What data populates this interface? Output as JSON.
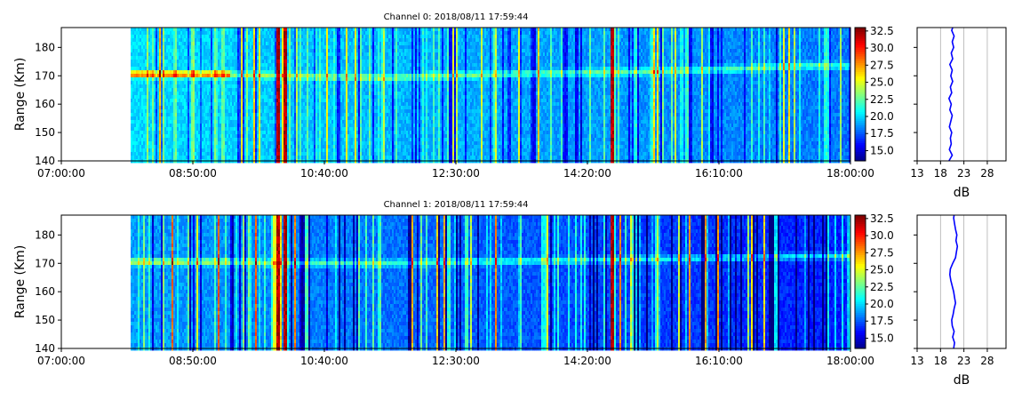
{
  "chart_data": [
    {
      "type": "heatmap",
      "title": "Channel 0: 2018/08/11 17:59:44",
      "ylabel": "Range (Km)",
      "xlim": [
        "07:00:00",
        "18:00:00"
      ],
      "data_start": "07:58:00",
      "ylim": [
        140,
        187
      ],
      "x_ticks": [
        "07:00:00",
        "08:50:00",
        "10:40:00",
        "12:30:00",
        "14:20:00",
        "16:10:00",
        "18:00:00"
      ],
      "y_ticks": [
        140,
        150,
        160,
        170,
        180
      ],
      "echo_layer": [
        {
          "time": "07:58:00",
          "range": 170.5
        },
        {
          "time": "09:10:00",
          "range": 170.5
        },
        {
          "time": "10:20:00",
          "range": 169.8
        },
        {
          "time": "11:30:00",
          "range": 169.2
        },
        {
          "time": "12:40:00",
          "range": 170.2
        },
        {
          "time": "14:00:00",
          "range": 171.0
        },
        {
          "time": "15:20:00",
          "range": 171.5
        },
        {
          "time": "16:30:00",
          "range": 172.5
        },
        {
          "time": "17:20:00",
          "range": 173.5
        }
      ],
      "strong_lines": [
        "10:00:00",
        "10:06:00",
        "14:40:00"
      ],
      "colorbar": {
        "min": 13.5,
        "max": 33,
        "ticks": [
          15.0,
          17.5,
          20.0,
          22.5,
          25.0,
          27.5,
          30.0,
          32.5
        ],
        "colormap": "jet"
      },
      "profile": {
        "xlabel": "dB",
        "xlim": [
          13,
          32
        ],
        "x_ticks": [
          13,
          18,
          23,
          28
        ],
        "grid": true,
        "color": "#0000ff",
        "range": [
          140,
          142,
          144,
          146,
          148,
          150,
          152,
          154,
          156,
          158,
          160,
          162,
          164,
          166,
          168,
          170,
          172,
          174,
          176,
          178,
          180,
          182,
          184,
          186,
          187
        ],
        "values": [
          19.8,
          20.5,
          19.9,
          20.3,
          20.1,
          20.4,
          19.9,
          20.2,
          20.5,
          20.0,
          20.3,
          19.8,
          20.4,
          20.1,
          20.6,
          20.2,
          20.5,
          20.0,
          20.6,
          20.3,
          20.8,
          20.5,
          20.9,
          20.4,
          20.6
        ]
      }
    },
    {
      "type": "heatmap",
      "title": "Channel 1: 2018/08/11 17:59:44",
      "ylabel": "Range (Km)",
      "xlim": [
        "07:00:00",
        "18:00:00"
      ],
      "data_start": "07:58:00",
      "ylim": [
        140,
        187
      ],
      "x_ticks": [
        "07:00:00",
        "08:50:00",
        "10:40:00",
        "12:30:00",
        "14:20:00",
        "16:10:00",
        "18:00:00"
      ],
      "y_ticks": [
        140,
        150,
        160,
        170,
        180
      ],
      "echo_layer": [
        {
          "time": "07:58:00",
          "range": 170.5
        },
        {
          "time": "09:10:00",
          "range": 170.5
        },
        {
          "time": "10:20:00",
          "range": 170.0
        },
        {
          "time": "11:30:00",
          "range": 170.0
        },
        {
          "time": "12:40:00",
          "range": 170.5
        },
        {
          "time": "14:00:00",
          "range": 171.0
        },
        {
          "time": "15:20:00",
          "range": 171.5
        },
        {
          "time": "16:30:00",
          "range": 172.0
        },
        {
          "time": "17:20:00",
          "range": 172.5
        }
      ],
      "strong_lines": [
        "10:00:00",
        "10:06:00",
        "14:40:00"
      ],
      "colorbar": {
        "min": 13.5,
        "max": 33,
        "ticks": [
          15.0,
          17.5,
          20.0,
          22.5,
          25.0,
          27.5,
          30.0,
          32.5
        ],
        "colormap": "jet"
      },
      "profile": {
        "xlabel": "dB",
        "xlim": [
          13,
          32
        ],
        "x_ticks": [
          13,
          18,
          23,
          28
        ],
        "grid": true,
        "color": "#0000ff",
        "range": [
          140,
          142,
          144,
          146,
          148,
          150,
          152,
          154,
          156,
          158,
          160,
          162,
          164,
          166,
          168,
          170,
          172,
          174,
          176,
          178,
          180,
          182,
          184,
          186,
          187
        ],
        "values": [
          20.8,
          21.0,
          20.6,
          20.9,
          20.5,
          20.4,
          20.7,
          20.9,
          21.2,
          21.0,
          20.8,
          20.5,
          20.2,
          20.0,
          20.1,
          20.6,
          21.2,
          21.4,
          21.6,
          21.3,
          21.5,
          21.2,
          21.0,
          20.8,
          20.9
        ]
      }
    }
  ]
}
